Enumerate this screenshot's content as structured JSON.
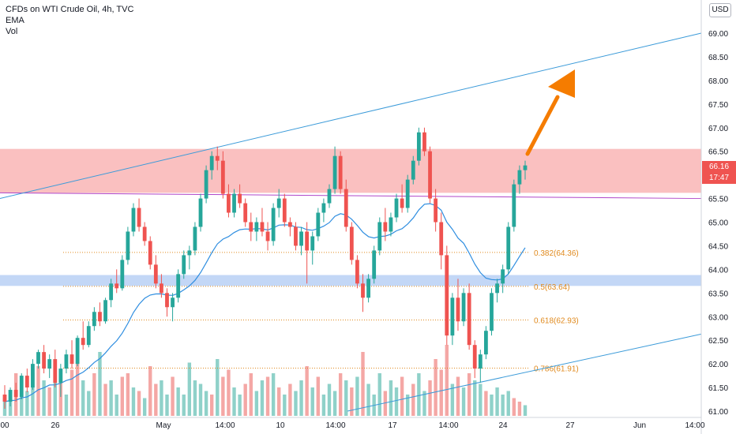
{
  "header": {
    "symbol_title": "CFDs on WTI Crude Oil, 4h, TVC",
    "indicator_1": "EMA",
    "indicator_2": "Vol",
    "currency": "USD"
  },
  "price_tag": {
    "price": "66.16",
    "countdown": "17:47",
    "color": "#ef5350"
  },
  "colors": {
    "up": "#26a69a",
    "down": "#ef5350",
    "vol_up": "#8fd1c9",
    "vol_down": "#f4a7a5",
    "ema": "#2f8ee0",
    "trend": "#3c9bd9",
    "horizontal": "#b046c9",
    "resistance_zone": "#f9b5b5",
    "support_zone": "#bcd3f5",
    "fib": "#e08a1e",
    "arrow": "#f57c00"
  },
  "chart_data": {
    "type": "candlestick",
    "y_axis": {
      "min": 61.0,
      "max": 69.0,
      "step": 0.5,
      "ticks": [
        "69.00",
        "68.50",
        "68.00",
        "67.50",
        "67.00",
        "66.50",
        "66.00",
        "65.50",
        "65.00",
        "64.50",
        "64.00",
        "63.50",
        "63.00",
        "62.50",
        "62.00",
        "61.50",
        "61.00"
      ]
    },
    "x_ticks": [
      "00",
      "26",
      "May",
      "14:00",
      "10",
      "14:00",
      "17",
      "14:00",
      "24",
      "27",
      "Jun",
      "14:00"
    ],
    "resistance_zone": [
      65.62,
      66.55
    ],
    "support_zone": [
      63.65,
      63.88
    ],
    "horizontal_line": {
      "start": 65.62,
      "end": 65.5
    },
    "upper_trendline": {
      "start": 65.5,
      "end": 69.0
    },
    "lower_trendline": {
      "start": 61.0,
      "end": 62.63
    },
    "fib_levels": [
      {
        "label": "0.382(64.36)",
        "price": 64.36
      },
      {
        "label": "0.5(63.64)",
        "price": 63.64
      },
      {
        "label": "0.618(62.93)",
        "price": 62.93
      },
      {
        "label": "0.786(61.91)",
        "price": 61.91
      }
    ],
    "candles": [
      [
        61.35,
        61.55,
        61.05,
        61.2
      ],
      [
        61.2,
        61.5,
        61.1,
        61.45
      ],
      [
        61.45,
        61.6,
        61.2,
        61.3
      ],
      [
        61.3,
        61.8,
        61.25,
        61.75
      ],
      [
        61.75,
        61.9,
        61.4,
        61.5
      ],
      [
        61.5,
        62.1,
        61.45,
        62.0
      ],
      [
        62.0,
        62.3,
        61.9,
        62.25
      ],
      [
        62.25,
        62.4,
        61.8,
        61.9
      ],
      [
        61.9,
        62.2,
        61.7,
        62.1
      ],
      [
        62.1,
        62.3,
        61.5,
        61.6
      ],
      [
        61.6,
        62.0,
        61.3,
        61.9
      ],
      [
        61.9,
        62.3,
        61.8,
        62.2
      ],
      [
        62.2,
        62.5,
        61.9,
        62.0
      ],
      [
        62.0,
        62.6,
        61.95,
        62.55
      ],
      [
        62.55,
        62.9,
        62.3,
        62.4
      ],
      [
        62.4,
        62.9,
        62.35,
        62.8
      ],
      [
        62.8,
        63.2,
        62.7,
        63.1
      ],
      [
        63.1,
        63.3,
        62.8,
        62.9
      ],
      [
        62.9,
        63.4,
        62.85,
        63.35
      ],
      [
        63.35,
        63.8,
        63.2,
        63.7
      ],
      [
        63.7,
        64.0,
        63.5,
        63.6
      ],
      [
        63.6,
        64.3,
        63.55,
        64.2
      ],
      [
        64.2,
        64.9,
        64.1,
        64.8
      ],
      [
        64.8,
        65.4,
        64.7,
        65.3
      ],
      [
        65.3,
        65.5,
        64.8,
        64.9
      ],
      [
        64.9,
        65.0,
        64.5,
        64.6
      ],
      [
        64.6,
        64.7,
        64.0,
        64.1
      ],
      [
        64.1,
        64.3,
        63.6,
        63.7
      ],
      [
        63.7,
        63.9,
        63.4,
        63.5
      ],
      [
        63.5,
        63.6,
        63.0,
        63.2
      ],
      [
        63.2,
        63.5,
        62.9,
        63.4
      ],
      [
        63.4,
        64.0,
        63.3,
        63.9
      ],
      [
        63.9,
        64.4,
        63.8,
        64.3
      ],
      [
        64.3,
        64.5,
        64.0,
        64.4
      ],
      [
        64.4,
        65.0,
        64.3,
        64.9
      ],
      [
        64.9,
        65.6,
        64.8,
        65.5
      ],
      [
        65.5,
        66.2,
        65.4,
        66.1
      ],
      [
        66.1,
        66.5,
        65.9,
        66.4
      ],
      [
        66.4,
        66.6,
        66.1,
        66.3
      ],
      [
        66.3,
        66.5,
        65.5,
        65.6
      ],
      [
        65.6,
        65.8,
        65.1,
        65.2
      ],
      [
        65.2,
        65.7,
        65.1,
        65.6
      ],
      [
        65.6,
        65.8,
        65.3,
        65.4
      ],
      [
        65.4,
        65.5,
        64.9,
        65.0
      ],
      [
        65.0,
        65.2,
        64.6,
        64.8
      ],
      [
        64.8,
        65.1,
        64.6,
        65.0
      ],
      [
        65.0,
        65.3,
        64.7,
        64.8
      ],
      [
        64.8,
        65.0,
        64.4,
        64.6
      ],
      [
        64.6,
        65.4,
        64.5,
        65.3
      ],
      [
        65.3,
        65.7,
        65.1,
        65.5
      ],
      [
        65.5,
        65.6,
        64.9,
        65.0
      ],
      [
        65.0,
        65.1,
        64.7,
        64.9
      ],
      [
        64.9,
        65.0,
        64.4,
        64.5
      ],
      [
        64.5,
        64.9,
        64.3,
        64.8
      ],
      [
        64.8,
        65.0,
        63.7,
        64.4
      ],
      [
        64.4,
        64.8,
        64.1,
        64.7
      ],
      [
        64.7,
        65.3,
        64.6,
        65.2
      ],
      [
        65.2,
        65.5,
        65.0,
        65.4
      ],
      [
        65.4,
        65.8,
        65.3,
        65.7
      ],
      [
        65.7,
        66.6,
        65.6,
        66.4
      ],
      [
        66.4,
        66.5,
        65.6,
        65.7
      ],
      [
        65.7,
        65.9,
        64.8,
        64.9
      ],
      [
        64.9,
        65.0,
        64.1,
        64.2
      ],
      [
        64.2,
        64.3,
        63.6,
        63.7
      ],
      [
        63.7,
        63.9,
        63.1,
        63.4
      ],
      [
        63.4,
        63.9,
        63.3,
        63.8
      ],
      [
        63.8,
        64.5,
        63.7,
        64.4
      ],
      [
        64.4,
        65.1,
        64.3,
        65.0
      ],
      [
        65.0,
        65.3,
        64.6,
        64.8
      ],
      [
        64.8,
        65.2,
        64.7,
        65.1
      ],
      [
        65.1,
        65.6,
        65.0,
        65.5
      ],
      [
        65.5,
        65.8,
        65.2,
        65.3
      ],
      [
        65.3,
        66.0,
        65.2,
        65.9
      ],
      [
        65.9,
        66.4,
        65.8,
        66.3
      ],
      [
        66.3,
        67.0,
        66.2,
        66.9
      ],
      [
        66.9,
        67.0,
        66.4,
        66.5
      ],
      [
        66.5,
        66.6,
        65.4,
        65.5
      ],
      [
        65.5,
        65.7,
        64.8,
        65.0
      ],
      [
        65.0,
        65.2,
        64.0,
        64.3
      ],
      [
        64.3,
        64.5,
        62.4,
        62.6
      ],
      [
        62.6,
        63.5,
        62.4,
        63.4
      ],
      [
        63.4,
        63.8,
        62.7,
        62.9
      ],
      [
        62.9,
        63.6,
        62.8,
        63.5
      ],
      [
        63.5,
        63.7,
        62.3,
        62.4
      ],
      [
        62.4,
        62.5,
        61.7,
        61.9
      ],
      [
        61.9,
        62.3,
        61.6,
        62.2
      ],
      [
        62.2,
        62.8,
        62.1,
        62.7
      ],
      [
        62.7,
        63.6,
        62.6,
        63.5
      ],
      [
        63.5,
        63.8,
        63.3,
        63.7
      ],
      [
        63.7,
        64.1,
        63.5,
        64.0
      ],
      [
        64.0,
        65.0,
        63.9,
        64.9
      ],
      [
        64.9,
        65.9,
        64.8,
        65.8
      ],
      [
        65.8,
        66.2,
        65.6,
        66.1
      ],
      [
        66.1,
        66.3,
        65.9,
        66.2
      ]
    ],
    "volume": [
      [
        0.25,
        1
      ],
      [
        0.3,
        1
      ],
      [
        0.6,
        0
      ],
      [
        0.45,
        1
      ],
      [
        0.35,
        1
      ],
      [
        0.6,
        1
      ],
      [
        0.7,
        0
      ],
      [
        0.5,
        1
      ],
      [
        0.4,
        0
      ],
      [
        0.8,
        1
      ],
      [
        0.55,
        0
      ],
      [
        0.3,
        1
      ],
      [
        0.65,
        0
      ],
      [
        0.75,
        0
      ],
      [
        0.5,
        1
      ],
      [
        0.35,
        1
      ],
      [
        0.6,
        0
      ],
      [
        0.9,
        1
      ],
      [
        0.45,
        0
      ],
      [
        0.5,
        1
      ],
      [
        0.3,
        1
      ],
      [
        0.55,
        0
      ],
      [
        0.6,
        0
      ],
      [
        0.4,
        1
      ],
      [
        0.35,
        0
      ],
      [
        0.25,
        1
      ],
      [
        0.7,
        0
      ],
      [
        0.45,
        0
      ],
      [
        0.5,
        1
      ],
      [
        0.3,
        1
      ],
      [
        0.55,
        0
      ],
      [
        0.4,
        1
      ],
      [
        0.3,
        1
      ],
      [
        0.75,
        1
      ],
      [
        0.5,
        1
      ],
      [
        0.45,
        1
      ],
      [
        0.35,
        1
      ],
      [
        0.3,
        0
      ],
      [
        0.8,
        1
      ],
      [
        0.55,
        0
      ],
      [
        0.65,
        0
      ],
      [
        0.4,
        1
      ],
      [
        0.3,
        1
      ],
      [
        0.45,
        0
      ],
      [
        0.6,
        0
      ],
      [
        0.35,
        1
      ],
      [
        0.5,
        1
      ],
      [
        0.55,
        0
      ],
      [
        0.6,
        1
      ],
      [
        0.4,
        0
      ],
      [
        0.3,
        1
      ],
      [
        0.45,
        0
      ],
      [
        0.35,
        1
      ],
      [
        0.5,
        1
      ],
      [
        0.7,
        0
      ],
      [
        0.4,
        1
      ],
      [
        0.55,
        0
      ],
      [
        0.3,
        1
      ],
      [
        0.45,
        1
      ],
      [
        0.35,
        1
      ],
      [
        0.6,
        0
      ],
      [
        0.5,
        1
      ],
      [
        0.4,
        0
      ],
      [
        0.55,
        1
      ],
      [
        0.9,
        0
      ],
      [
        0.45,
        1
      ],
      [
        0.3,
        1
      ],
      [
        0.6,
        1
      ],
      [
        0.35,
        0
      ],
      [
        0.5,
        1
      ],
      [
        0.4,
        1
      ],
      [
        0.55,
        0
      ],
      [
        0.3,
        1
      ],
      [
        0.45,
        0
      ],
      [
        0.6,
        1
      ],
      [
        0.35,
        1
      ],
      [
        0.5,
        0
      ],
      [
        0.8,
        0
      ],
      [
        0.65,
        0
      ],
      [
        1.0,
        0
      ],
      [
        0.45,
        1
      ],
      [
        0.55,
        0
      ],
      [
        0.4,
        1
      ],
      [
        0.6,
        0
      ],
      [
        0.5,
        1
      ],
      [
        0.45,
        1
      ],
      [
        0.35,
        0
      ],
      [
        0.3,
        1
      ],
      [
        0.4,
        1
      ],
      [
        0.3,
        1
      ],
      [
        0.35,
        1
      ],
      [
        0.25,
        0
      ],
      [
        0.2,
        0
      ],
      [
        0.15,
        1
      ]
    ]
  }
}
